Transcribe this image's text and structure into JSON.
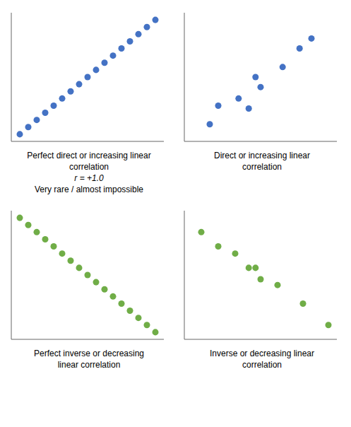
{
  "chart_data": [
    {
      "type": "scatter",
      "title": "Perfect direct or increasing linear\ncorrelation",
      "subtitle": "r = +1.0",
      "annotations": [
        "Very rare / almost impossible"
      ],
      "x": [
        0.5,
        1.0,
        1.5,
        2.0,
        2.5,
        3.0,
        3.5,
        4.0,
        4.5,
        5.0,
        5.5,
        6.0,
        6.5,
        7.0,
        7.5,
        8.0,
        8.5
      ],
      "values": [
        0.5,
        1.0,
        1.5,
        2.0,
        2.5,
        3.0,
        3.5,
        4.0,
        4.5,
        5.0,
        5.5,
        6.0,
        6.5,
        7.0,
        7.5,
        8.0,
        8.5
      ],
      "color": "#4472C4",
      "xlim": [
        0,
        9
      ],
      "ylim": [
        0,
        9
      ],
      "xticks": [],
      "yticks": [],
      "tick_labels": false
    },
    {
      "type": "scatter",
      "title": "Direct or increasing linear\ncorrelation",
      "x": [
        1.5,
        2.0,
        3.2,
        3.8,
        4.5,
        4.2,
        5.8,
        6.8,
        7.5
      ],
      "values": [
        1.2,
        2.5,
        3.0,
        2.3,
        3.8,
        4.5,
        5.2,
        6.5,
        7.2
      ],
      "color": "#4472C4",
      "xlim": [
        0,
        9
      ],
      "ylim": [
        0,
        9
      ],
      "xticks": [],
      "yticks": [],
      "tick_labels": false
    },
    {
      "type": "scatter",
      "title": "Perfect inverse or decreasing\nlinear correlation",
      "x": [
        0.5,
        1.0,
        1.5,
        2.0,
        2.5,
        3.0,
        3.5,
        4.0,
        4.5,
        5.0,
        5.5,
        6.0,
        6.5,
        7.0,
        7.5,
        8.0,
        8.5
      ],
      "values": [
        8.5,
        8.0,
        7.5,
        7.0,
        6.5,
        6.0,
        5.5,
        5.0,
        4.5,
        4.0,
        3.5,
        3.0,
        2.5,
        2.0,
        1.5,
        1.0,
        0.5
      ],
      "color": "#70AD47",
      "xlim": [
        0,
        9
      ],
      "ylim": [
        0,
        9
      ],
      "xticks": [],
      "yticks": [],
      "tick_labels": false
    },
    {
      "type": "scatter",
      "title": "Inverse or decreasing linear\ncorrelation",
      "x": [
        1.0,
        2.0,
        3.0,
        3.8,
        4.5,
        4.2,
        5.5,
        7.0,
        8.5
      ],
      "values": [
        7.5,
        6.5,
        6.0,
        5.0,
        4.2,
        5.0,
        3.8,
        2.5,
        1.0
      ],
      "color": "#70AD47",
      "xlim": [
        0,
        9
      ],
      "ylim": [
        0,
        9
      ],
      "xticks": [],
      "yticks": [],
      "tick_labels": false
    }
  ]
}
